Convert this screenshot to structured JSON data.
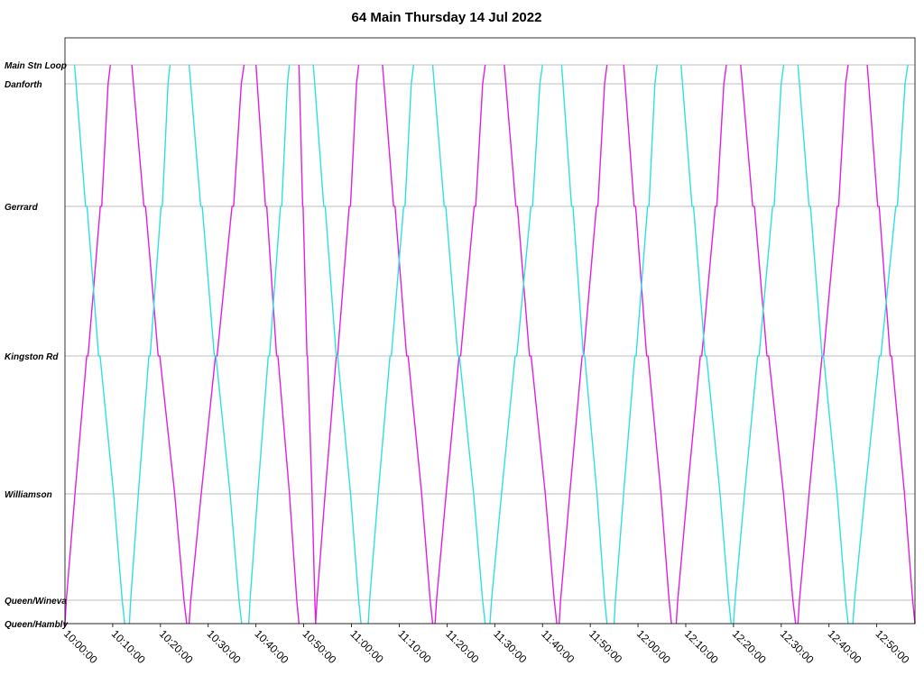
{
  "chart_data": {
    "type": "line",
    "title": "64 Main Thursday 14 Jul 2022",
    "xlabel": "",
    "ylabel": "",
    "x_axis": {
      "min": "10:00:00",
      "max": "12:58:00",
      "tick_labels": [
        "10:00:00",
        "10:10:00",
        "10:20:00",
        "10:30:00",
        "10:40:00",
        "10:50:00",
        "11:00:00",
        "11:10:00",
        "11:20:00",
        "11:30:00",
        "11:40:00",
        "11:50:00",
        "12:00:00",
        "12:10:00",
        "12:20:00",
        "12:30:00",
        "12:40:00",
        "12:50:00"
      ]
    },
    "y_axis": {
      "stops": [
        "Main Stn Loop",
        "Danforth",
        "Gerrard",
        "Kingston Rd",
        "Williamson",
        "Queen/Wineva",
        "Queen/Hambly"
      ]
    },
    "grid": true,
    "legend": "none",
    "colors": {
      "vehicle_a": "#e020e0",
      "vehicle_b": "#30e0e0"
    },
    "series": [
      {
        "color": "#e020e0",
        "trips": [
          {
            "direction": "north",
            "start": "10:00:00",
            "end": "10:09:30"
          },
          {
            "direction": "south",
            "start": "10:14:00",
            "end": "10:25:30"
          },
          {
            "direction": "north",
            "start": "10:26:00",
            "end": "10:37:30"
          },
          {
            "direction": "south",
            "start": "10:40:00",
            "end": "10:49:00"
          },
          {
            "direction": "south",
            "start": "10:49:00",
            "end": "10:52:30"
          },
          {
            "direction": "north",
            "start": "10:52:30",
            "end": "11:01:30"
          },
          {
            "direction": "south",
            "start": "11:06:30",
            "end": "11:17:00"
          },
          {
            "direction": "north",
            "start": "11:17:30",
            "end": "11:28:00"
          },
          {
            "direction": "south",
            "start": "11:32:00",
            "end": "11:43:00"
          },
          {
            "direction": "north",
            "start": "11:43:30",
            "end": "11:53:30"
          },
          {
            "direction": "south",
            "start": "11:57:00",
            "end": "12:07:00"
          },
          {
            "direction": "north",
            "start": "12:08:00",
            "end": "12:18:30"
          },
          {
            "direction": "south",
            "start": "12:21:30",
            "end": "12:33:00"
          },
          {
            "direction": "north",
            "start": "12:33:30",
            "end": "12:44:00"
          },
          {
            "direction": "south",
            "start": "12:48:00",
            "end": "12:58:00"
          }
        ]
      },
      {
        "color": "#30e0e0",
        "trips": [
          {
            "direction": "south",
            "start": "10:02:00",
            "end": "10:12:30"
          },
          {
            "direction": "north",
            "start": "10:13:30",
            "end": "10:22:00"
          },
          {
            "direction": "south",
            "start": "10:26:00",
            "end": "10:37:00"
          },
          {
            "direction": "north",
            "start": "10:38:30",
            "end": "10:47:00"
          },
          {
            "direction": "south",
            "start": "10:52:00",
            "end": "11:02:00"
          },
          {
            "direction": "north",
            "start": "11:03:30",
            "end": "11:13:00"
          },
          {
            "direction": "south",
            "start": "11:17:00",
            "end": "11:28:00"
          },
          {
            "direction": "north",
            "start": "11:29:00",
            "end": "11:40:00"
          },
          {
            "direction": "south",
            "start": "11:44:00",
            "end": "11:53:30"
          },
          {
            "direction": "north",
            "start": "11:55:00",
            "end": "12:04:00"
          },
          {
            "direction": "south",
            "start": "12:09:00",
            "end": "12:19:30"
          },
          {
            "direction": "north",
            "start": "12:20:00",
            "end": "12:30:30"
          },
          {
            "direction": "south",
            "start": "12:33:30",
            "end": "12:44:00"
          },
          {
            "direction": "north",
            "start": "12:45:00",
            "end": "12:56:30"
          }
        ]
      }
    ]
  }
}
